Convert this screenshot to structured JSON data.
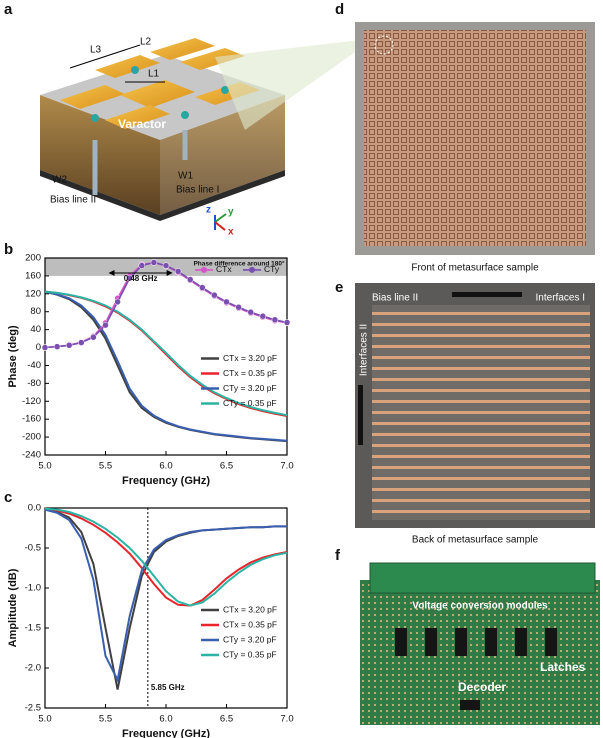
{
  "panels": {
    "a": "a",
    "b": "b",
    "c": "c",
    "d": "d",
    "e": "e",
    "f": "f"
  },
  "diagram": {
    "L3": "L3",
    "L2": "L2",
    "L1": "L1",
    "varactor": "Varactor",
    "W2": "W2",
    "W1": "W1",
    "bias_line_2": "Bias line II",
    "bias_line_1": "Bias line I",
    "axis_z": "z",
    "axis_y": "y",
    "axis_x": "x"
  },
  "photos": {
    "front_caption": "Front of metasurface sample",
    "back_caption": "Back of metasurface sample",
    "bias_line_2": "Bias line II",
    "interfaces_1": "Interfaces I",
    "interfaces_2": "Interfaces II",
    "voltage_modules": "Voltage conversion modules",
    "latches": "Latches",
    "decoder": "Decoder"
  },
  "chart_data": [
    {
      "type": "line",
      "x_label": "Frequency (GHz)",
      "y_label": "Phase (deg)",
      "x": [
        5.0,
        5.1,
        5.2,
        5.3,
        5.4,
        5.5,
        5.6,
        5.7,
        5.8,
        5.9,
        6.0,
        6.1,
        6.2,
        6.3,
        6.4,
        6.5,
        6.6,
        6.7,
        6.8,
        6.9,
        7.0
      ],
      "xlim": [
        5.0,
        7.0
      ],
      "xticks": [
        {
          "value": 5.0,
          "label": "5.0"
        },
        5.5,
        {
          "value": 6.0,
          "label": "6.0"
        },
        6.5,
        {
          "value": 7.0,
          "label": "7.0"
        }
      ],
      "ylim": [
        -240,
        200
      ],
      "yticks": [
        -240,
        -200,
        -160,
        -120,
        -80,
        -40,
        0,
        40,
        80,
        120,
        160,
        200
      ],
      "legend": "center right",
      "band": [
        160,
        200
      ],
      "band_label": "Phase difference around 180°",
      "span": [
        5.55,
        6.03
      ],
      "span_label": "0.48 GHz",
      "series": [
        {
          "name": "CTx = 3.20 pF",
          "color": "#404040",
          "values": [
            125,
            118,
            108,
            90,
            62,
            20,
            -40,
            -100,
            -135,
            -155,
            -168,
            -177,
            -184,
            -189,
            -194,
            -197,
            -200,
            -203,
            -205,
            -207,
            -209
          ]
        },
        {
          "name": "CTx = 0.35 pF",
          "color": "#e8252b",
          "values": [
            125,
            122,
            117,
            111,
            103,
            92,
            78,
            60,
            38,
            12,
            -15,
            -42,
            -66,
            -86,
            -102,
            -115,
            -126,
            -135,
            -142,
            -148,
            -153
          ]
        },
        {
          "name": "CTy = 3.20 pF",
          "color": "#3a5fb0",
          "values": [
            125,
            119,
            110,
            94,
            68,
            28,
            -30,
            -92,
            -130,
            -152,
            -166,
            -176,
            -183,
            -188,
            -193,
            -196,
            -199,
            -202,
            -204,
            -206,
            -208
          ]
        },
        {
          "name": "CTy = 0.35 pF",
          "color": "#2bb3a3",
          "values": [
            125,
            122,
            118,
            112,
            104,
            94,
            80,
            62,
            40,
            14,
            -12,
            -39,
            -63,
            -83,
            -100,
            -113,
            -124,
            -133,
            -140,
            -146,
            -151
          ]
        },
        {
          "name": "CTx",
          "color": "#d455c8",
          "marker": "circle",
          "values": [
            0,
            2,
            5,
            12,
            25,
            55,
            110,
            160,
            185,
            190,
            182,
            168,
            150,
            132,
            115,
            100,
            88,
            77,
            68,
            60,
            55
          ]
        },
        {
          "name": "CTy",
          "color": "#7a4fb0",
          "marker": "circle",
          "values": [
            0,
            2,
            5,
            11,
            23,
            50,
            102,
            155,
            183,
            190,
            183,
            170,
            152,
            134,
            117,
            102,
            90,
            79,
            70,
            62,
            56
          ]
        }
      ]
    },
    {
      "type": "line",
      "x_label": "Frequency (GHz)",
      "y_label": "Amplitude (dB)",
      "x": [
        5.0,
        5.1,
        5.2,
        5.3,
        5.4,
        5.5,
        5.6,
        5.7,
        5.8,
        5.9,
        6.0,
        6.1,
        6.2,
        6.3,
        6.4,
        6.5,
        6.6,
        6.7,
        6.8,
        6.9,
        7.0
      ],
      "xlim": [
        5.0,
        7.0
      ],
      "xticks": [
        {
          "value": 5.0,
          "label": "5.0"
        },
        5.5,
        {
          "value": 6.0,
          "label": "6.0"
        },
        6.5,
        {
          "value": 7.0,
          "label": "7.0"
        }
      ],
      "ylim": [
        -2.5,
        0.0
      ],
      "yticks": [
        -2.5,
        {
          "value": -2.0,
          "label": "-2.0"
        },
        -1.5,
        {
          "value": -1.0,
          "label": "-1.0"
        },
        -0.5,
        {
          "value": 0,
          "label": "0.0"
        }
      ],
      "legend": "center right",
      "vline": 5.85,
      "vline_label": "5.85 GHz",
      "series": [
        {
          "name": "CTx = 3.20 pF",
          "color": "#404040",
          "values": [
            -0.02,
            -0.05,
            -0.12,
            -0.3,
            -0.7,
            -1.5,
            -2.27,
            -1.5,
            -0.85,
            -0.55,
            -0.42,
            -0.35,
            -0.31,
            -0.28,
            -0.27,
            -0.26,
            -0.25,
            -0.24,
            -0.24,
            -0.23,
            -0.23
          ]
        },
        {
          "name": "CTx = 0.35 pF",
          "color": "#e8252b",
          "values": [
            -0.01,
            -0.03,
            -0.07,
            -0.13,
            -0.21,
            -0.31,
            -0.43,
            -0.57,
            -0.75,
            -0.95,
            -1.12,
            -1.21,
            -1.22,
            -1.15,
            -1.02,
            -0.88,
            -0.77,
            -0.68,
            -0.62,
            -0.58,
            -0.55
          ]
        },
        {
          "name": "CTy = 3.20 pF",
          "color": "#3a5fb0",
          "values": [
            -0.02,
            -0.06,
            -0.15,
            -0.38,
            -0.9,
            -1.85,
            -2.15,
            -1.35,
            -0.78,
            -0.52,
            -0.4,
            -0.34,
            -0.3,
            -0.28,
            -0.27,
            -0.26,
            -0.25,
            -0.24,
            -0.24,
            -0.23,
            -0.23
          ]
        },
        {
          "name": "CTy = 0.35 pF",
          "color": "#2bb3a3",
          "values": [
            -0.01,
            -0.02,
            -0.05,
            -0.1,
            -0.17,
            -0.26,
            -0.37,
            -0.5,
            -0.66,
            -0.85,
            -1.04,
            -1.17,
            -1.22,
            -1.18,
            -1.07,
            -0.93,
            -0.81,
            -0.71,
            -0.64,
            -0.59,
            -0.56
          ]
        }
      ]
    }
  ]
}
